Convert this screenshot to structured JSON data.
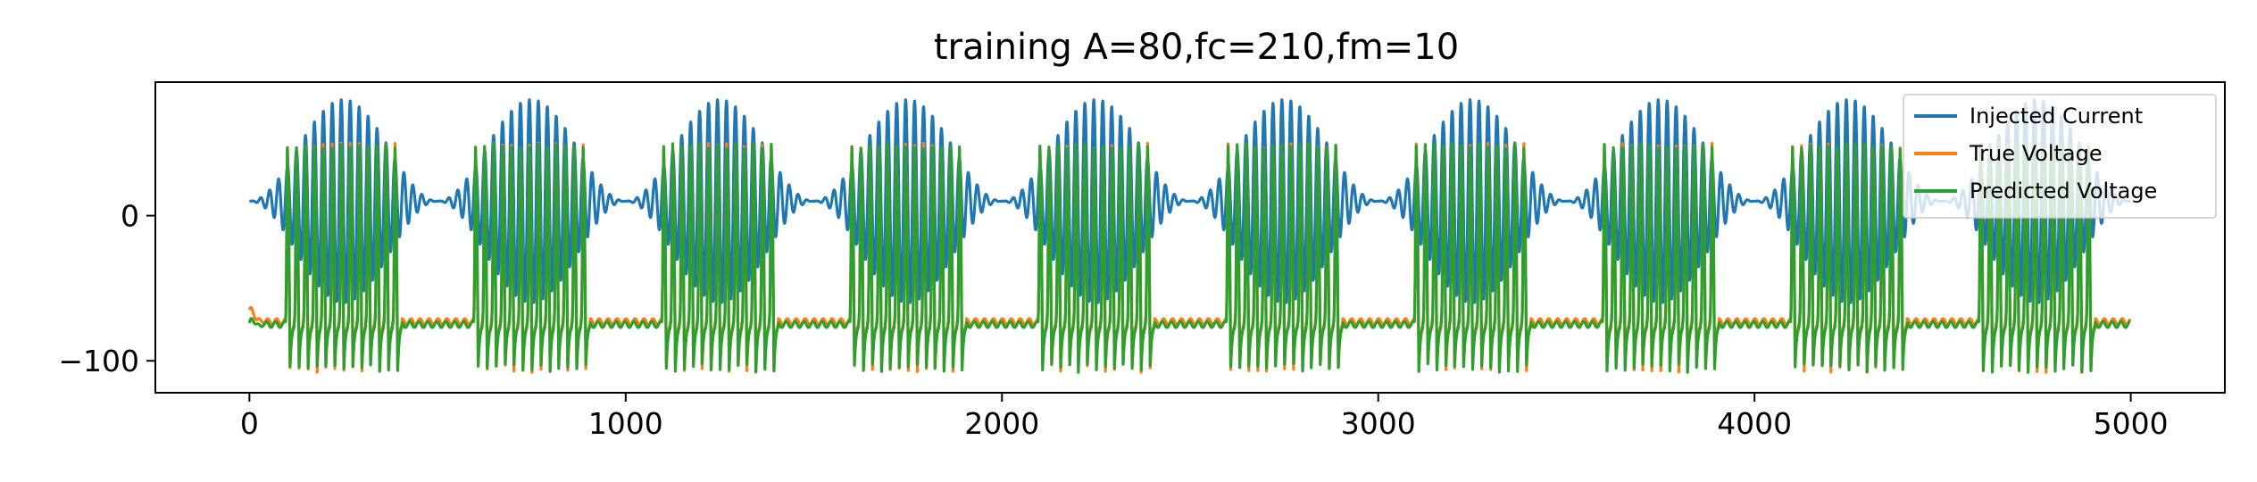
{
  "chart_data": {
    "type": "line",
    "title": "training A=80,fc=210,fm=10",
    "xlabel": "",
    "ylabel": "",
    "xlim": [
      -250,
      5250
    ],
    "ylim": [
      -122,
      92
    ],
    "xticks": [
      0,
      1000,
      2000,
      3000,
      4000,
      5000
    ],
    "xtick_labels": [
      "0",
      "1000",
      "2000",
      "3000",
      "4000",
      "5000"
    ],
    "yticks": [
      0,
      -100
    ],
    "ytick_labels": [
      "0",
      "−100"
    ],
    "grid": false,
    "legend_position": "top-right",
    "num_points": 5000,
    "period": 500,
    "series": [
      {
        "name": "Injected Current",
        "color": "#1f77b4",
        "amplitude": 80,
        "carrier_cycles_per_period": 21,
        "period_samples": 500,
        "value_range": [
          -60,
          80
        ]
      },
      {
        "name": "True Voltage",
        "color": "#ff7f0e",
        "resting": -73,
        "start_value": -65,
        "spike_peak": 50,
        "spike_trough": -108,
        "value_range": [
          -108,
          50
        ]
      },
      {
        "name": "Predicted Voltage",
        "color": "#2ca02c",
        "resting": -75,
        "start_value": -74,
        "spike_peak": 50,
        "spike_trough": -108,
        "value_range": [
          -108,
          50
        ]
      }
    ]
  }
}
